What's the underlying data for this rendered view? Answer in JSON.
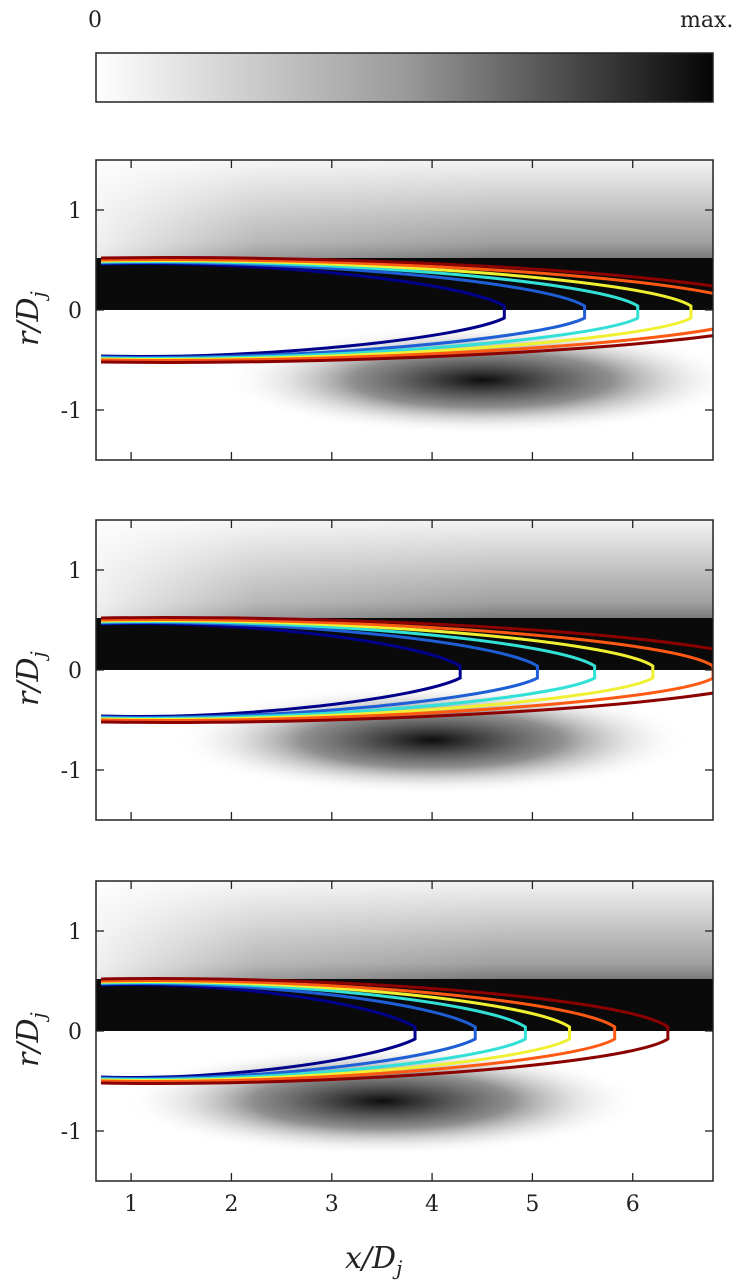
{
  "colorbar": {
    "min_label": "0",
    "max_label": "max.",
    "colormap": "gray_reversed"
  },
  "chart_data": [
    {
      "type": "contour",
      "panel": 1,
      "xlabel": "",
      "ylabel": "r/D_j",
      "xlim": [
        0.65,
        6.8
      ],
      "ylim": [
        -1.5,
        1.5
      ],
      "xticks": [
        1,
        2,
        3,
        4,
        5,
        6
      ],
      "yticks": [
        1,
        0,
        -1
      ],
      "ytick_labels": [
        "1",
        "0",
        "-1"
      ],
      "contours": [
        {
          "color": "#00008b",
          "tip_x": 4.72,
          "edge_x": 0.7,
          "r_upper": 0.46,
          "r_lower": -0.46
        },
        {
          "color": "#1f5fd6",
          "tip_x": 5.52,
          "edge_x": 0.7,
          "r_upper": 0.47,
          "r_lower": -0.47
        },
        {
          "color": "#33e0d6",
          "tip_x": 6.05,
          "edge_x": 0.7,
          "r_upper": 0.48,
          "r_lower": -0.48
        },
        {
          "color": "#f0f033",
          "tip_x": 6.58,
          "edge_x": 0.7,
          "r_upper": 0.49,
          "r_lower": -0.49
        },
        {
          "color": "#ff5a14",
          "tip_x": 7.2,
          "edge_x": 0.7,
          "r_upper": 0.5,
          "r_lower": -0.5
        },
        {
          "color": "#8b0000",
          "tip_x": 7.6,
          "edge_x": 0.7,
          "r_upper": 0.52,
          "r_lower": -0.52
        }
      ],
      "lower_peak_x": 4.5
    },
    {
      "type": "contour",
      "panel": 2,
      "xlabel": "",
      "ylabel": "r/D_j",
      "xlim": [
        0.65,
        6.8
      ],
      "ylim": [
        -1.5,
        1.5
      ],
      "xticks": [
        1,
        2,
        3,
        4,
        5,
        6
      ],
      "yticks": [
        1,
        0,
        -1
      ],
      "ytick_labels": [
        "1",
        "0",
        "-1"
      ],
      "contours": [
        {
          "color": "#00008b",
          "tip_x": 4.28,
          "edge_x": 0.7,
          "r_upper": 0.46,
          "r_lower": -0.46
        },
        {
          "color": "#1f5fd6",
          "tip_x": 5.05,
          "edge_x": 0.7,
          "r_upper": 0.47,
          "r_lower": -0.47
        },
        {
          "color": "#33e0d6",
          "tip_x": 5.62,
          "edge_x": 0.7,
          "r_upper": 0.48,
          "r_lower": -0.48
        },
        {
          "color": "#f0f033",
          "tip_x": 6.2,
          "edge_x": 0.7,
          "r_upper": 0.49,
          "r_lower": -0.49
        },
        {
          "color": "#ff5a14",
          "tip_x": 6.8,
          "edge_x": 0.7,
          "r_upper": 0.5,
          "r_lower": -0.5
        },
        {
          "color": "#8b0000",
          "tip_x": 7.4,
          "edge_x": 0.7,
          "r_upper": 0.52,
          "r_lower": -0.52
        }
      ],
      "lower_peak_x": 4.0
    },
    {
      "type": "contour",
      "panel": 3,
      "xlabel": "x/D_j",
      "ylabel": "r/D_j",
      "xlim": [
        0.65,
        6.8
      ],
      "ylim": [
        -1.5,
        1.5
      ],
      "xticks": [
        1,
        2,
        3,
        4,
        5,
        6
      ],
      "xtick_labels": [
        "1",
        "2",
        "3",
        "4",
        "5",
        "6"
      ],
      "yticks": [
        1,
        0,
        -1
      ],
      "ytick_labels": [
        "1",
        "0",
        "-1"
      ],
      "contours": [
        {
          "color": "#00008b",
          "tip_x": 3.83,
          "edge_x": 0.7,
          "r_upper": 0.46,
          "r_lower": -0.46
        },
        {
          "color": "#1f5fd6",
          "tip_x": 4.43,
          "edge_x": 0.7,
          "r_upper": 0.47,
          "r_lower": -0.47
        },
        {
          "color": "#33e0d6",
          "tip_x": 4.93,
          "edge_x": 0.7,
          "r_upper": 0.48,
          "r_lower": -0.48
        },
        {
          "color": "#f0f033",
          "tip_x": 5.37,
          "edge_x": 0.7,
          "r_upper": 0.49,
          "r_lower": -0.49
        },
        {
          "color": "#ff5a14",
          "tip_x": 5.82,
          "edge_x": 0.7,
          "r_upper": 0.5,
          "r_lower": -0.5
        },
        {
          "color": "#8b0000",
          "tip_x": 6.35,
          "edge_x": 0.7,
          "r_upper": 0.52,
          "r_lower": -0.52
        }
      ],
      "lower_peak_x": 3.5
    }
  ]
}
